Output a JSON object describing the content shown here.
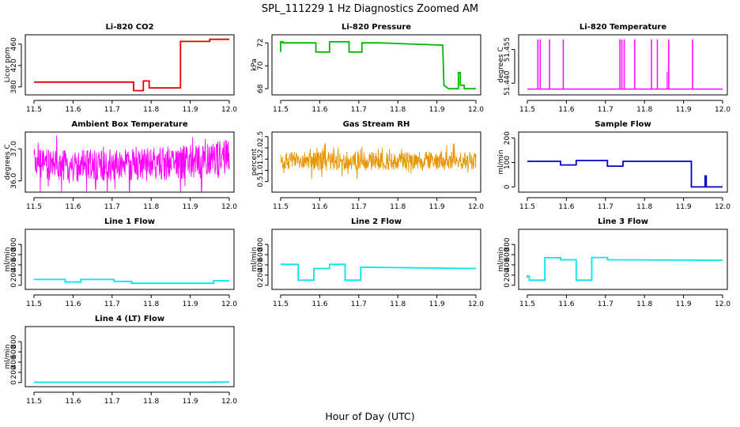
{
  "figure": {
    "title": "SPL_111229  1 Hz Diagnostics Zoomed AM",
    "xlabel": "Hour of Day (UTC)"
  },
  "chart_data": [
    {
      "type": "line",
      "title": "Li-820 CO2",
      "ylabel": "Licor ppm",
      "color": "#e60000",
      "xlim": [
        11.5,
        12.0
      ],
      "ylim": [
        368,
        473
      ],
      "xticks": [
        11.5,
        11.6,
        11.7,
        11.8,
        11.9,
        12.0
      ],
      "yticks": [
        380,
        420,
        460
      ],
      "series": [
        {
          "x": [
            11.5,
            11.755,
            11.755,
            11.78,
            11.78,
            11.795,
            11.795,
            11.835,
            11.835,
            11.838,
            11.838,
            11.875,
            11.875,
            11.95,
            11.95,
            12.0
          ],
          "y": [
            389,
            389,
            373,
            373,
            391,
            391,
            378,
            378,
            378,
            378,
            378,
            378,
            465,
            465,
            469,
            469
          ]
        }
      ]
    },
    {
      "type": "line",
      "title": "Li-820 Pressure",
      "ylabel": "kPa",
      "color": "#00b800",
      "xlim": [
        11.5,
        12.0
      ],
      "ylim": [
        67.6,
        72.5
      ],
      "xticks": [
        11.5,
        11.6,
        11.7,
        11.8,
        11.9,
        12.0
      ],
      "yticks": [
        68,
        70,
        72
      ],
      "series": [
        {
          "x": [
            11.5,
            11.5,
            11.505,
            11.505,
            11.59,
            11.59,
            11.625,
            11.625,
            11.675,
            11.675,
            11.708,
            11.708,
            11.75,
            11.75,
            11.915,
            11.918,
            11.93,
            11.955,
            11.955,
            11.96,
            11.96,
            11.97,
            11.97,
            12.0
          ],
          "y": [
            71.2,
            72.1,
            72.1,
            72.0,
            72.0,
            71.2,
            71.2,
            72.1,
            72.1,
            71.2,
            71.2,
            72.0,
            72.0,
            72.0,
            71.8,
            68.3,
            68.0,
            68.0,
            69.4,
            69.4,
            68.3,
            68.3,
            68.0,
            68.0
          ]
        }
      ]
    },
    {
      "type": "line",
      "title": "Li-820 Temperature",
      "ylabel": "degrees C",
      "color": "#ff00ff",
      "xlim": [
        11.5,
        12.0
      ],
      "ylim": [
        51.4355,
        51.4605
      ],
      "xticks": [
        11.5,
        11.6,
        11.7,
        11.8,
        11.9,
        12.0
      ],
      "yticks": [
        51.44,
        51.455
      ],
      "baseline": 51.4374,
      "spike_top": 51.4595,
      "spike_x": [
        11.527,
        11.533,
        11.557,
        11.592,
        11.737,
        11.742,
        11.748,
        11.775,
        11.818,
        11.833,
        11.862,
        11.923
      ],
      "small_spike": {
        "x": 11.858,
        "y": 51.445
      }
    },
    {
      "type": "line",
      "title": "Ambient Box Temperature",
      "ylabel": "degrees C",
      "color": "#ff00ff",
      "xlim": [
        11.5,
        12.0
      ],
      "ylim": [
        35.7,
        37.45
      ],
      "xticks": [
        11.5,
        11.6,
        11.7,
        11.8,
        11.9,
        12.0
      ],
      "yticks": [
        36.0,
        37.0
      ],
      "noise_band": {
        "x": [
          11.5,
          11.6,
          11.7,
          11.8,
          11.9,
          12.0
        ],
        "lo": [
          36.05,
          35.95,
          35.95,
          36.0,
          36.05,
          36.15
        ],
        "hi": [
          37.0,
          36.95,
          37.0,
          37.05,
          37.15,
          37.3
        ]
      }
    },
    {
      "type": "line",
      "title": "Gas Stream RH",
      "ylabel": "percent",
      "color": "#e69600",
      "xlim": [
        11.5,
        12.0
      ],
      "ylim": [
        0.1,
        2.6
      ],
      "xticks": [
        11.5,
        11.6,
        11.7,
        11.8,
        11.9,
        12.0
      ],
      "yticks": [
        0.5,
        1.0,
        1.5,
        2.0,
        2.5
      ],
      "noise_band": {
        "x": [
          11.5,
          11.6,
          11.7,
          11.8,
          11.9,
          12.0
        ],
        "lo": [
          1.05,
          1.0,
          1.0,
          1.0,
          1.0,
          1.05
        ],
        "hi": [
          1.8,
          1.85,
          1.85,
          1.8,
          1.85,
          1.8
        ]
      }
    },
    {
      "type": "line",
      "title": "Sample Flow",
      "ylabel": "ml/min",
      "color": "#0000cc",
      "xlim": [
        11.5,
        12.0
      ],
      "ylim": [
        -15,
        215
      ],
      "xticks": [
        11.5,
        11.6,
        11.7,
        11.8,
        11.9,
        12.0
      ],
      "yticks": [
        0,
        100,
        200
      ],
      "series": [
        {
          "x": [
            11.5,
            11.585,
            11.585,
            11.625,
            11.625,
            11.705,
            11.705,
            11.745,
            11.745,
            11.92,
            11.92,
            11.93,
            11.93,
            11.955,
            11.955,
            11.958,
            11.958,
            12.0
          ],
          "y": [
            105,
            105,
            90,
            90,
            108,
            108,
            85,
            85,
            105,
            105,
            0,
            0,
            0,
            0,
            45,
            45,
            0,
            0
          ]
        }
      ]
    },
    {
      "type": "line",
      "title": "Line 1 Flow",
      "ylabel": "ml/min",
      "color": "#00e5ee",
      "xlim": [
        11.5,
        12.0
      ],
      "ylim": [
        -50,
        1050
      ],
      "xticks": [
        11.5,
        11.6,
        11.7,
        11.8,
        11.9,
        12.0
      ],
      "yticks": [
        0,
        200,
        400,
        600,
        800
      ],
      "series": [
        {
          "x": [
            11.5,
            11.58,
            11.58,
            11.62,
            11.62,
            11.705,
            11.705,
            11.75,
            11.75,
            11.96,
            11.96,
            12.0
          ],
          "y": [
            115,
            115,
            65,
            65,
            115,
            115,
            75,
            75,
            40,
            40,
            90,
            90
          ]
        }
      ]
    },
    {
      "type": "line",
      "title": "Line 2 Flow",
      "ylabel": "ml/min",
      "color": "#00e5ee",
      "xlim": [
        11.5,
        12.0
      ],
      "ylim": [
        -50,
        1050
      ],
      "xticks": [
        11.5,
        11.6,
        11.7,
        11.8,
        11.9,
        12.0
      ],
      "yticks": [
        0,
        200,
        400,
        600,
        800
      ],
      "series": [
        {
          "x": [
            11.5,
            11.545,
            11.545,
            11.585,
            11.585,
            11.625,
            11.625,
            11.665,
            11.665,
            11.705,
            11.705,
            12.0
          ],
          "y": [
            410,
            410,
            100,
            100,
            330,
            330,
            410,
            410,
            100,
            100,
            355,
            330
          ]
        }
      ]
    },
    {
      "type": "line",
      "title": "Line 3 Flow",
      "ylabel": "ml/min",
      "color": "#00e5ee",
      "xlim": [
        11.5,
        12.0
      ],
      "ylim": [
        -50,
        1050
      ],
      "xticks": [
        11.5,
        11.6,
        11.7,
        11.8,
        11.9,
        12.0
      ],
      "yticks": [
        0,
        200,
        400,
        600,
        800
      ],
      "series": [
        {
          "x": [
            11.5,
            11.5,
            11.505,
            11.505,
            11.545,
            11.545,
            11.585,
            11.585,
            11.625,
            11.625,
            11.665,
            11.665,
            11.705,
            11.705,
            12.0
          ],
          "y": [
            150,
            180,
            180,
            100,
            100,
            540,
            540,
            500,
            500,
            100,
            100,
            545,
            545,
            500,
            490
          ]
        }
      ]
    },
    {
      "type": "line",
      "title": "Line 4 (LT) Flow",
      "ylabel": "ml/min",
      "color": "#00e5ee",
      "xlim": [
        11.5,
        12.0
      ],
      "ylim": [
        -50,
        1050
      ],
      "xticks": [
        11.5,
        11.6,
        11.7,
        11.8,
        11.9,
        12.0
      ],
      "yticks": [
        0,
        200,
        400,
        600,
        800
      ],
      "series": [
        {
          "x": [
            11.5,
            11.96,
            11.96,
            12.0
          ],
          "y": [
            5,
            5,
            10,
            10
          ]
        }
      ]
    }
  ]
}
